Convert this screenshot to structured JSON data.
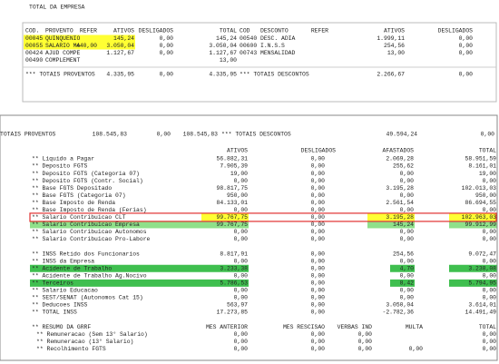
{
  "top_panel": {
    "title": "TOTAL DA EMPRESA",
    "headers": {
      "cod": "COD.",
      "provento": "PROVENTO",
      "refer": "REFER",
      "ativos": "ATIVOS",
      "desligados": "DESLIGADOS",
      "total": "TOTAL",
      "cod2": "COD",
      "desconto": "DESCONTO",
      "refer2": "REFER",
      "ativos2": "ATIVOS",
      "desligados2": "DESLIGADOS"
    },
    "rows": [
      {
        "cod": "00045",
        "provento": "QUINQUENIO",
        "ativos": "145,24",
        "desligados": "0,00",
        "total": "145,24",
        "cod2": "00540",
        "desconto": "DESC. ADIA",
        "ativos2": "1.999,11",
        "desligados2": "0,00"
      },
      {
        "cod": "00055",
        "provento": "SALARIO MA",
        "refer": "440,00",
        "ativos": "3.050,04",
        "desligados": "0,00",
        "total": "3.050,04",
        "cod2": "00600",
        "desconto": "I.N.S.S",
        "ativos2": "254,56",
        "desligados2": "0,00"
      },
      {
        "cod": "00424",
        "provento": "AJUD COMPE",
        "ativos": "1.127,67",
        "desligados": "0,00",
        "total": "1.127,67",
        "cod2": "00743",
        "desconto": "MENSALIDAD",
        "ativos2": "13,00",
        "desligados2": "0,00"
      },
      {
        "cod": "00490",
        "provento": "COMPLEMENT",
        "total": "13,00"
      }
    ],
    "totals": {
      "label": "*** TOTAIS PROVENTOS",
      "ativos": "4.335,95",
      "desligados": "0,00",
      "total": "4.335,95",
      "label2": "*** TOTAIS DESCONTOS",
      "ativos2": "2.266,67",
      "desligados2": "0,00"
    }
  },
  "bottom_panel": {
    "totals": {
      "label": "TOTAIS PROVENTOS",
      "ativos": "108.545,83",
      "desligados": "0,00",
      "total": "108.545,83",
      "label2": "*** TOTAIS DESCONTOS",
      "ativos2": "49.594,24",
      "desligados2": "0,00"
    },
    "headers": {
      "ativos": "ATIVOS",
      "desligados": "DESLIGADOS",
      "afastados": "AFASTADOS",
      "total": "TOTAL"
    },
    "rows": [
      {
        "label": "** Liquido a Pagar",
        "ativos": "56.882,31",
        "desligados": "0,00",
        "afastados": "2.069,28",
        "total": "58.951,59"
      },
      {
        "label": "** Deposito FGTS",
        "ativos": "7.905,39",
        "desligados": "0,00",
        "afastados": "255,62",
        "total": "8.161,01"
      },
      {
        "label": "** Deposito FGTS (Categoria 07)",
        "ativos": "19,00",
        "desligados": "0,00",
        "afastados": "0,00",
        "total": "19,00"
      },
      {
        "label": "** Deposito FGTS (Contr. Social)",
        "ativos": "0,00",
        "desligados": "0,00",
        "afastados": "0,00",
        "total": "0,00"
      },
      {
        "label": "** Base FGTS Depositado",
        "ativos": "98.817,75",
        "desligados": "0,00",
        "afastados": "3.195,28",
        "total": "102.013,03"
      },
      {
        "label": "** Base FGTS (Categoria 07)",
        "ativos": "950,00",
        "desligados": "0,00",
        "afastados": "0,00",
        "total": "950,00"
      },
      {
        "label": "** Base Imposto de Renda",
        "ativos": "84.133,01",
        "desligados": "0,00",
        "afastados": "2.561,54",
        "total": "86.694,55"
      },
      {
        "label": "** Base Imposto de Renda (Ferias)",
        "ativos": "0,00",
        "desligados": "0,00",
        "afastados": "0,00",
        "total": "0,00"
      },
      {
        "label": "** Salario Contribuicao CLT",
        "ativos": "99.767,75",
        "desligados": "0,00",
        "afastados": "3.195,28",
        "total": "102.963,03"
      },
      {
        "label": "** Salario Contribuicao Empresa",
        "ativos": "99.767,75",
        "desligados": "0,00",
        "afastados": "145,24",
        "total": "99.912,99"
      },
      {
        "label": "** Salario Contribuicao Autonomos",
        "ativos": "0,00",
        "desligados": "0,00",
        "afastados": "0,00",
        "total": "0,00"
      },
      {
        "label": "** Salario Contribuicao Pro-Labore",
        "ativos": "0,00",
        "desligados": "0,00",
        "afastados": "0,00",
        "total": "0,00"
      },
      {
        "label": "** INSS Retido dos Funcionarios",
        "ativos": "8.817,91",
        "desligados": "0,00",
        "afastados": "254,56",
        "total": "9.072,47"
      },
      {
        "label": "** INSS da Empresa",
        "ativos": "0,00",
        "desligados": "0,00",
        "afastados": "0,00",
        "total": "0,00"
      },
      {
        "label": "** Acidente de Trabalho",
        "ativos": "3.233,38",
        "desligados": "0,00",
        "afastados": "4,70",
        "total": "3.238,08"
      },
      {
        "label": "** Acidente de Trabalho Ag.Nocivo",
        "ativos": "0,00",
        "desligados": "0,00",
        "afastados": "0,00",
        "total": "0,00"
      },
      {
        "label": "** Terceiros",
        "ativos": "5.786,53",
        "desligados": "0,00",
        "afastados": "8,42",
        "total": "5.794,95"
      },
      {
        "label": "** Salario Educacao",
        "ativos": "0,00",
        "desligados": "0,00",
        "afastados": "0,00",
        "total": "0,00"
      },
      {
        "label": "** SEST/SENAT (Autonomos Cat 15)",
        "ativos": "0,00",
        "desligados": "0,00",
        "afastados": "0,00",
        "total": "0,00"
      },
      {
        "label": "** Deducoes INSS",
        "ativos": "563,97",
        "desligados": "0,00",
        "afastados": "3.050,04",
        "total": "3.614,01"
      },
      {
        "label": "** TOTAL INSS",
        "ativos": "17.273,85",
        "desligados": "0,00",
        "afastados": "-2.782,36",
        "total": "14.491,49"
      }
    ],
    "resumo_headers": {
      "label": "** RESUMO DA GRRF",
      "mes_anterior": "MES ANTERIOR",
      "mes_rescisao": "MES RESCISAO",
      "verbas_ind": "VERBAS IND",
      "multa": "MULTA",
      "total": "TOTAL"
    },
    "resumo_rows": [
      {
        "label": "** Remuneracao (Sem 13° Salario)",
        "mes_anterior": "0,00",
        "mes_rescisao": "0,00",
        "verbas_ind": "0,00",
        "total": "0,00"
      },
      {
        "label": "** Remuneracao (13° Salario)",
        "mes_anterior": "0,00",
        "mes_rescisao": "0,00",
        "verbas_ind": "0,00",
        "total": "0,00"
      },
      {
        "label": "** Recolhimento FGTS",
        "mes_anterior": "0,00",
        "mes_rescisao": "0,00",
        "verbas_ind": "0,00",
        "multa": "0,00",
        "total": "0,00"
      }
    ]
  }
}
